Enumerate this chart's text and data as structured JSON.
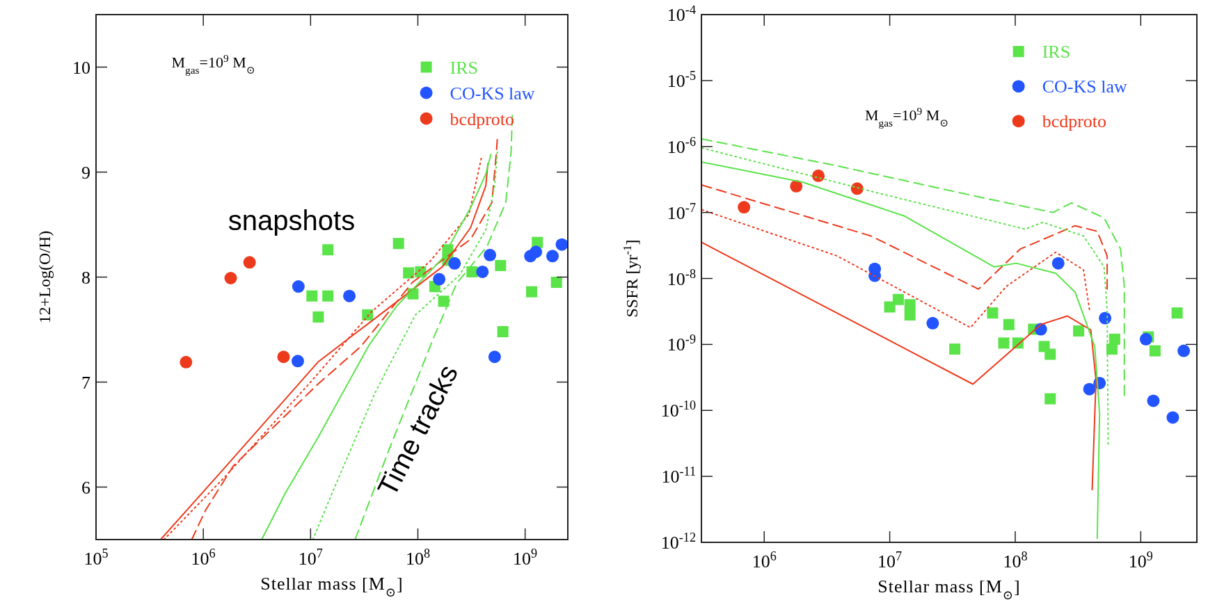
{
  "chart_data": [
    {
      "type": "scatter",
      "log": "x",
      "xlabel": "Stellar mass [M$_{⊙}$]",
      "ylabel": "12+Log(O/H)",
      "legend": "top right",
      "grid": false,
      "xlim": [
        100000,
        2500000000
      ],
      "xticks": [
        {
          "value": 100000,
          "label": "10$^{5}$"
        },
        {
          "value": 1000000,
          "label": "10$^{6}$"
        },
        {
          "value": 10000000,
          "label": "10$^{7}$"
        },
        {
          "value": 100000000,
          "label": "10$^{8}$"
        },
        {
          "value": 1000000000,
          "label": "10$^{9}$"
        }
      ],
      "ylim": [
        5.5,
        10.5
      ],
      "yticks": [
        6,
        7,
        8,
        9,
        10
      ],
      "annotations": [
        "M$_{gas}$=10$^{9}$ M$_{⊙}$",
        "snapshots",
        "Time tracks"
      ],
      "series": [
        {
          "name": "IRS",
          "marker": "square",
          "color": "#5be34a",
          "x": [
            14500000,
            66000000,
            190000000,
            190000000,
            82000000,
            106000000,
            320000000,
            590000000,
            1300000000,
            1960000000,
            1150000000,
            144000000,
            90000000,
            174000000,
            10300000,
            14500000,
            11800000,
            34000000,
            620000000
          ],
          "values": [
            8.26,
            8.32,
            8.26,
            8.16,
            8.04,
            8.05,
            8.05,
            8.11,
            8.33,
            7.95,
            7.86,
            7.91,
            7.84,
            7.77,
            7.82,
            7.82,
            7.62,
            7.64,
            7.48
          ]
        },
        {
          "name": "CO-KS law",
          "marker": "circle",
          "color": "#2255ff",
          "x": [
            7700000,
            23000000,
            158000000,
            220000000,
            400000000,
            470000000,
            1120000000,
            1260000000,
            1800000000,
            2200000000,
            7600000,
            520000000
          ],
          "values": [
            7.91,
            7.82,
            7.98,
            8.13,
            8.05,
            8.21,
            8.2,
            8.24,
            8.2,
            8.31,
            7.2,
            7.24
          ]
        },
        {
          "name": "bcdproto",
          "marker": "circle",
          "color": "#ee3a1c",
          "x": [
            690000,
            1800000,
            2700000,
            5600000
          ],
          "values": [
            7.19,
            7.99,
            8.14,
            7.24
          ]
        },
        {
          "type": "line",
          "line_style": "solid",
          "marker": "none",
          "color": "#ee3a1c",
          "x": [
            400000,
            1600000,
            11700000,
            23000000,
            37000000,
            170000000,
            310000000,
            430000000,
            450000000
          ],
          "values": [
            5.5,
            6.19,
            7.19,
            7.42,
            7.58,
            8.1,
            8.47,
            8.87,
            9.08
          ]
        },
        {
          "type": "line",
          "line_style": "dotted",
          "marker": "none",
          "color": "#ee3a1c",
          "x": [
            430000,
            1600000,
            10000000,
            37000000,
            130000000,
            300000000,
            390000000
          ],
          "values": [
            5.5,
            6.1,
            7.0,
            7.67,
            8.15,
            8.6,
            9.13
          ]
        },
        {
          "type": "line",
          "line_style": "dashed",
          "marker": "none",
          "color": "#ee3a1c",
          "x": [
            780000,
            1050000,
            1900000,
            11700000,
            29500000,
            89000000,
            310000000,
            490000000,
            540000000,
            550000000
          ],
          "values": [
            5.5,
            5.78,
            6.2,
            6.98,
            7.34,
            7.95,
            8.36,
            8.71,
            9.19,
            9.31
          ]
        },
        {
          "type": "line",
          "line_style": "solid",
          "marker": "none",
          "color": "#5be34a",
          "x": [
            3500000,
            5800000,
            11700000,
            35000000,
            63000000,
            170000000,
            310000000,
            430000000,
            480000000
          ],
          "values": [
            5.5,
            5.94,
            6.47,
            7.35,
            7.72,
            8.18,
            8.66,
            8.98,
            9.17
          ]
        },
        {
          "type": "line",
          "line_style": "dotted",
          "marker": "none",
          "color": "#5be34a",
          "x": [
            10500000,
            16600000,
            40000000,
            95000000,
            245000000,
            430000000,
            520000000,
            550000000
          ],
          "values": [
            5.5,
            5.99,
            6.9,
            7.64,
            8.02,
            8.45,
            8.87,
            9.19
          ]
        },
        {
          "type": "line",
          "line_style": "dashed",
          "marker": "none",
          "color": "#5be34a",
          "x": [
            26000000,
            54000000,
            135000000,
            230000000,
            440000000,
            660000000,
            740000000,
            760000000
          ],
          "values": [
            5.5,
            6.36,
            7.38,
            7.94,
            8.29,
            8.71,
            9.19,
            9.54
          ]
        }
      ]
    },
    {
      "type": "scatter",
      "log": "xy",
      "xlabel": "Stellar mass [M$_{⊙}$]",
      "ylabel": "SSFR [yr$^{-1}$]",
      "legend": "top right",
      "grid": false,
      "xlim": [
        316000,
        2800000000
      ],
      "xticks": [
        {
          "value": 1000000,
          "label": "10$^{6}$"
        },
        {
          "value": 10000000,
          "label": "10$^{7}$"
        },
        {
          "value": 100000000,
          "label": "10$^{8}$"
        },
        {
          "value": 1000000000,
          "label": "10$^{9}$"
        }
      ],
      "ylim": [
        1e-12,
        0.0001
      ],
      "yticks": [
        {
          "value": 1e-12,
          "label": "10$^{-12}$"
        },
        {
          "value": 1e-11,
          "label": "10$^{-11}$"
        },
        {
          "value": 1e-10,
          "label": "10$^{-10}$"
        },
        {
          "value": 1e-09,
          "label": "10$^{-9}$"
        },
        {
          "value": 1e-08,
          "label": "10$^{-8}$"
        },
        {
          "value": 1e-07,
          "label": "10$^{-7}$"
        },
        {
          "value": 1e-06,
          "label": "10$^{-6}$"
        },
        {
          "value": 1e-05,
          "label": "10$^{-5}$"
        },
        {
          "value": 0.0001,
          "label": "10$^{-4}$"
        }
      ],
      "annotations": [
        "M$_{gas}$=10$^{9}$ M$_{⊙}$"
      ],
      "series": [
        {
          "name": "IRS",
          "marker": "square",
          "color": "#5be34a",
          "x": [
            10000000,
            11700000,
            14500000,
            14500000,
            66000000,
            1950000000,
            33000000,
            89000000,
            81000000,
            105000000,
            140000000,
            170000000,
            190000000,
            190000000,
            320000000,
            590000000,
            620000000,
            1150000000,
            1300000000
          ],
          "values": [
            3.7e-09,
            4.8e-09,
            4e-09,
            2.8e-09,
            3e-09,
            3e-09,
            8.5e-10,
            2e-09,
            1.05e-09,
            1.05e-09,
            1.7e-09,
            9.3e-10,
            7.1e-10,
            1.5e-10,
            1.6e-09,
            8.5e-10,
            1.2e-09,
            1.3e-09,
            8e-10
          ]
        },
        {
          "name": "CO-KS law",
          "marker": "circle",
          "color": "#2255ff",
          "x": [
            7600000,
            7600000,
            220000000,
            22000000,
            160000000,
            520000000,
            390000000,
            470000000,
            1100000000,
            2200000000,
            1260000000,
            1800000000
          ],
          "values": [
            1.4e-08,
            1.1e-08,
            1.7e-08,
            2.1e-09,
            1.7e-09,
            2.5e-09,
            2.1e-10,
            2.6e-10,
            1.2e-09,
            8e-10,
            1.4e-10,
            7.8e-11
          ]
        },
        {
          "name": "bcdproto",
          "marker": "circle",
          "color": "#ee3a1c",
          "x": [
            690000,
            1800000,
            2700000,
            5500000
          ],
          "values": [
            1.2e-07,
            2.5e-07,
            3.6e-07,
            2.3e-07
          ]
        },
        {
          "type": "line",
          "line_style": "solid",
          "marker": "none",
          "color": "#ee3a1c",
          "x": [
            320000,
            46000000,
            160000000,
            260000000,
            400000000,
            440000000,
            410000000
          ],
          "values": [
            3.5e-08,
            2.5e-10,
            2e-09,
            2.7e-09,
            1.66e-09,
            2.9e-10,
            6.3e-12
          ]
        },
        {
          "type": "line",
          "line_style": "dotted",
          "marker": "none",
          "color": "#ee3a1c",
          "x": [
            320000,
            3800000,
            44000000,
            85000000,
            210000000,
            350000000,
            390000000
          ],
          "values": [
            1.1e-07,
            2.2e-08,
            1.8e-09,
            7.6e-09,
            2.5e-08,
            1.35e-08,
            3.4e-09
          ]
        },
        {
          "type": "line",
          "line_style": "dashed",
          "marker": "none",
          "color": "#ee3a1c",
          "x": [
            320000,
            7100000,
            51000000,
            110000000,
            300000000,
            450000000,
            540000000,
            540000000
          ],
          "values": [
            2.6e-07,
            4.4e-08,
            6.9e-09,
            2.8e-08,
            6.3e-08,
            5.2e-08,
            2.2e-08,
            6.9e-09
          ]
        },
        {
          "type": "line",
          "line_style": "solid",
          "marker": "none",
          "color": "#5be34a",
          "x": [
            320000,
            2000000,
            13000000,
            68000000,
            102000000,
            210000000,
            300000000,
            430000000,
            470000000,
            450000000
          ],
          "values": [
            5.8e-07,
            2.9e-07,
            8.9e-08,
            1.5e-08,
            1.7e-08,
            1.2e-08,
            6.2e-09,
            9.3e-10,
            8.9e-11,
            1.15e-12
          ]
        },
        {
          "type": "line",
          "line_style": "dotted",
          "marker": "none",
          "color": "#5be34a",
          "x": [
            320000,
            9800000,
            120000000,
            166000000,
            350000000,
            510000000,
            540000000,
            550000000
          ],
          "values": [
            9.5e-07,
            1.8e-07,
            5.6e-08,
            7.1e-08,
            4.4e-08,
            1.5e-08,
            3.3e-09,
            3.1e-11
          ]
        },
        {
          "type": "line",
          "line_style": "dashed",
          "marker": "none",
          "color": "#5be34a",
          "x": [
            320000,
            3800000,
            46000000,
            200000000,
            280000000,
            510000000,
            690000000,
            740000000,
            740000000
          ],
          "values": [
            1.3e-06,
            5.1e-07,
            1.8e-07,
            1e-07,
            1.4e-07,
            8.3e-08,
            2.8e-08,
            7.6e-09,
            1.7e-10
          ]
        }
      ]
    }
  ]
}
